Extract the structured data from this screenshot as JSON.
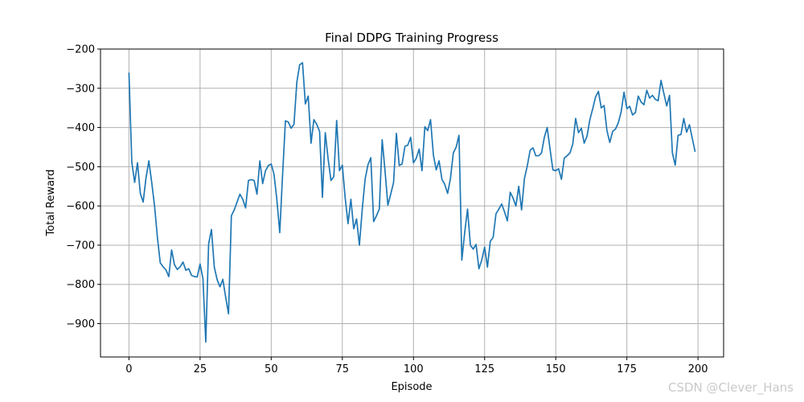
{
  "watermark": "CSDN @Clever_Hans",
  "chart_data": {
    "type": "line",
    "title": "Final DDPG Training Progress",
    "xlabel": "Episode",
    "ylabel": "Total Reward",
    "xlim": [
      -10,
      209
    ],
    "ylim": [
      -985,
      -200
    ],
    "xticks": [
      0,
      25,
      50,
      75,
      100,
      125,
      150,
      175,
      200
    ],
    "yticks": [
      -900,
      -800,
      -700,
      -600,
      -500,
      -400,
      -300,
      -200
    ],
    "grid": true,
    "line_color": "#1f77b4",
    "series": [
      {
        "values": [
          -260,
          -488,
          -540,
          -490,
          -568,
          -590,
          -528,
          -485,
          -540,
          -600,
          -680,
          -745,
          -755,
          -763,
          -780,
          -712,
          -750,
          -762,
          -755,
          -743,
          -764,
          -760,
          -777,
          -780,
          -781,
          -748,
          -785,
          -947,
          -697,
          -660,
          -756,
          -788,
          -806,
          -787,
          -833,
          -875,
          -625,
          -610,
          -590,
          -570,
          -583,
          -605,
          -535,
          -533,
          -535,
          -570,
          -485,
          -543,
          -510,
          -497,
          -493,
          -520,
          -585,
          -668,
          -520,
          -383,
          -386,
          -402,
          -392,
          -285,
          -240,
          -235,
          -340,
          -320,
          -440,
          -380,
          -392,
          -410,
          -578,
          -413,
          -480,
          -535,
          -525,
          -382,
          -510,
          -496,
          -580,
          -645,
          -583,
          -658,
          -633,
          -700,
          -608,
          -532,
          -495,
          -477,
          -640,
          -625,
          -608,
          -431,
          -510,
          -598,
          -570,
          -540,
          -415,
          -497,
          -493,
          -448,
          -445,
          -425,
          -490,
          -478,
          -455,
          -510,
          -398,
          -408,
          -380,
          -470,
          -508,
          -485,
          -532,
          -545,
          -568,
          -530,
          -465,
          -450,
          -420,
          -738,
          -668,
          -608,
          -700,
          -710,
          -698,
          -760,
          -738,
          -705,
          -756,
          -690,
          -680,
          -620,
          -608,
          -595,
          -615,
          -638,
          -565,
          -580,
          -600,
          -550,
          -610,
          -530,
          -498,
          -458,
          -452,
          -472,
          -472,
          -465,
          -425,
          -400,
          -455,
          -508,
          -510,
          -505,
          -532,
          -478,
          -472,
          -465,
          -442,
          -377,
          -413,
          -402,
          -440,
          -422,
          -380,
          -352,
          -322,
          -308,
          -350,
          -344,
          -408,
          -438,
          -410,
          -404,
          -388,
          -360,
          -310,
          -352,
          -346,
          -368,
          -362,
          -320,
          -335,
          -342,
          -305,
          -325,
          -318,
          -328,
          -332,
          -280,
          -313,
          -345,
          -318,
          -465,
          -496,
          -420,
          -418,
          -377,
          -412,
          -393,
          -428,
          -462
        ]
      }
    ]
  }
}
